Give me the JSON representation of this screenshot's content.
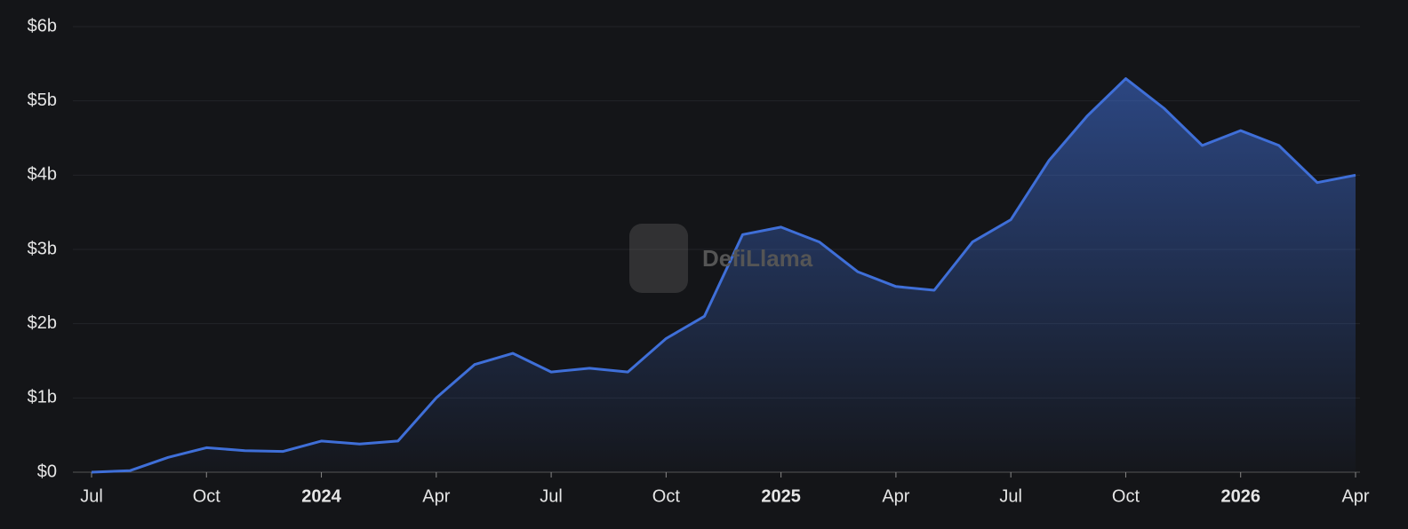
{
  "chart_data": {
    "type": "area",
    "watermark": "DefiLlama",
    "x": [
      "2023-07",
      "2023-08",
      "2023-09",
      "2023-10",
      "2023-11",
      "2023-12",
      "2024-01",
      "2024-02",
      "2024-03",
      "2024-04",
      "2024-05",
      "2024-06",
      "2024-07",
      "2024-08",
      "2024-09",
      "2024-10",
      "2024-11",
      "2024-12",
      "2025-01",
      "2025-02",
      "2025-03",
      "2025-04",
      "2025-05",
      "2025-06",
      "2025-07",
      "2025-08",
      "2025-09",
      "2025-10",
      "2025-11",
      "2025-12",
      "2026-01",
      "2026-02",
      "2026-03",
      "2026-04"
    ],
    "values": [
      0,
      0.02,
      0.2,
      0.33,
      0.29,
      0.28,
      0.42,
      0.38,
      0.42,
      1.0,
      1.45,
      1.6,
      1.35,
      1.4,
      1.35,
      1.8,
      2.1,
      3.2,
      3.3,
      3.1,
      2.7,
      2.5,
      2.45,
      3.1,
      3.4,
      4.2,
      4.8,
      5.3,
      4.9,
      4.4,
      4.6,
      4.4,
      3.9,
      4.0
    ],
    "color": "#3f6fd8",
    "ylim": [
      0,
      6
    ],
    "yticks": [
      {
        "value": 0,
        "label": "$0"
      },
      {
        "value": 1,
        "label": "$1b"
      },
      {
        "value": 2,
        "label": "$2b"
      },
      {
        "value": 3,
        "label": "$3b"
      },
      {
        "value": 4,
        "label": "$4b"
      },
      {
        "value": 5,
        "label": "$5b"
      },
      {
        "value": 6,
        "label": "$6b"
      }
    ],
    "xticks": [
      {
        "value": "2023-07",
        "label": "Jul"
      },
      {
        "value": "2023-10",
        "label": "Oct"
      },
      {
        "value": "2024-01",
        "label": "2024"
      },
      {
        "value": "2024-04",
        "label": "Apr"
      },
      {
        "value": "2024-07",
        "label": "Jul"
      },
      {
        "value": "2024-10",
        "label": "Oct"
      },
      {
        "value": "2025-01",
        "label": "2025"
      },
      {
        "value": "2025-04",
        "label": "Apr"
      },
      {
        "value": "2025-07",
        "label": "Jul"
      },
      {
        "value": "2025-10",
        "label": "Oct"
      },
      {
        "value": "2026-01",
        "label": "2026"
      },
      {
        "value": "2026-04",
        "label": "Apr"
      }
    ],
    "grid": true
  }
}
